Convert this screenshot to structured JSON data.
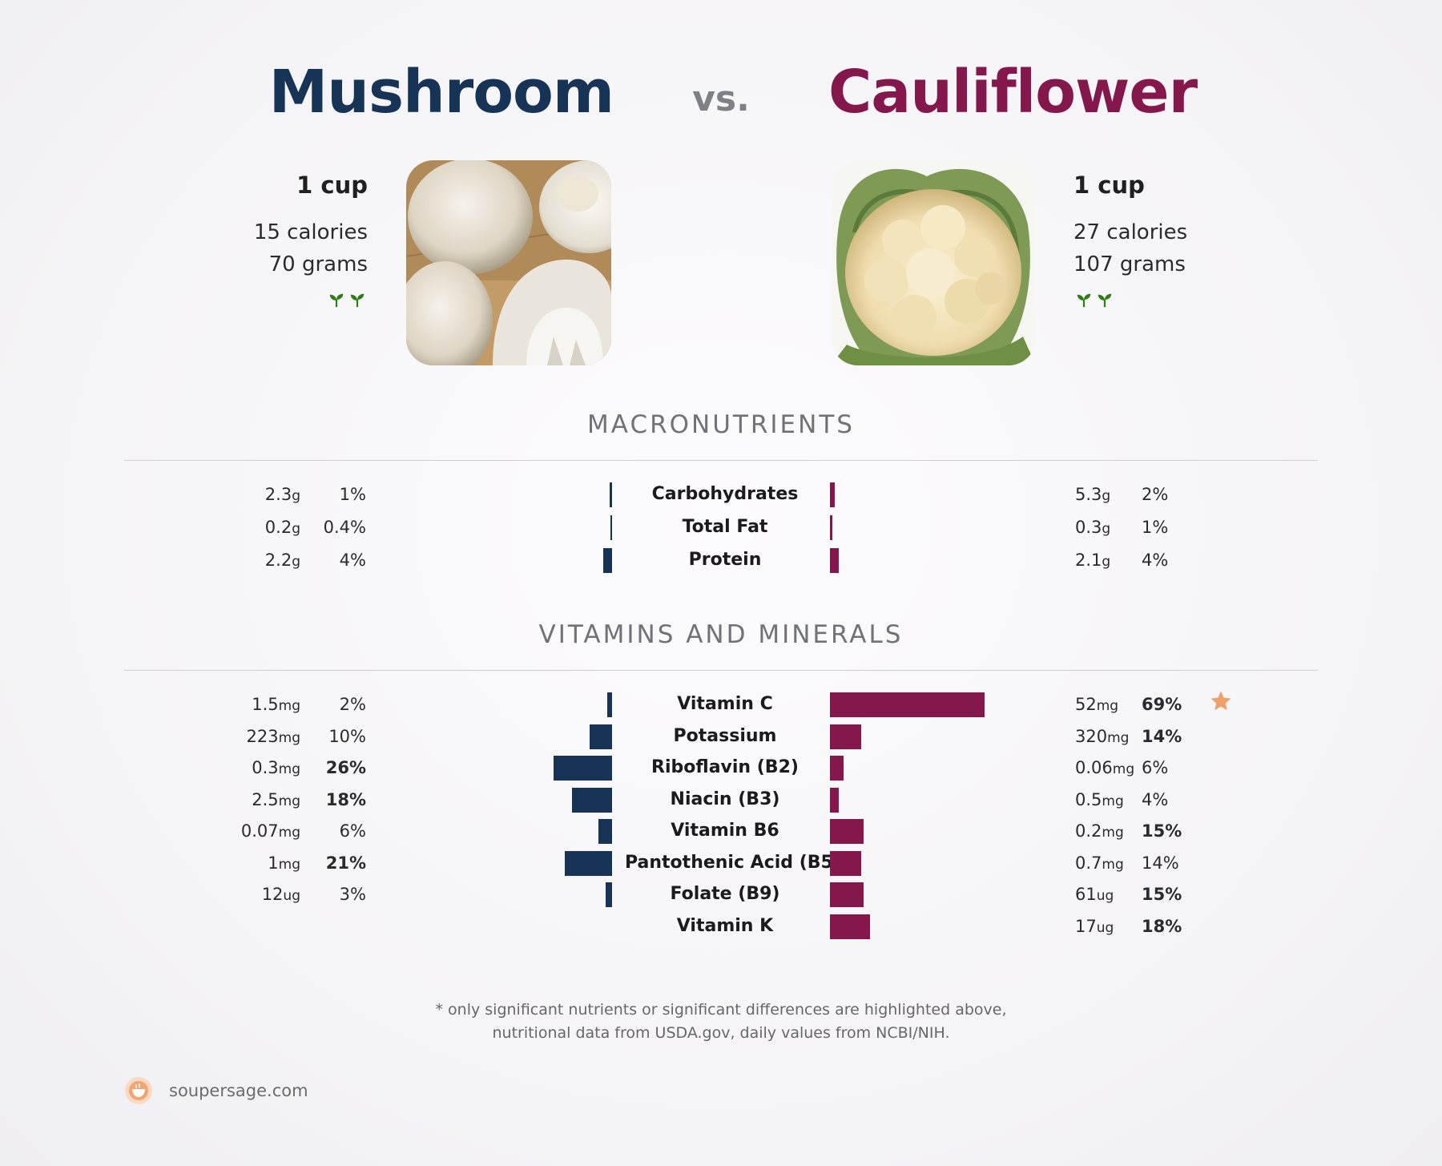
{
  "header": {
    "left_title": "Mushroom",
    "vs": "vs.",
    "right_title": "Cauliflower"
  },
  "foods": {
    "left": {
      "serving": "1 cup",
      "calories": "15 calories",
      "weight": "70 grams",
      "sprout_icons": [
        "sprout-icon",
        "sprout-icon"
      ]
    },
    "right": {
      "serving": "1 cup",
      "calories": "27 calories",
      "weight": "107 grams",
      "sprout_icons": [
        "sprout-icon",
        "sprout-icon"
      ]
    }
  },
  "colors": {
    "left": "#173457",
    "right": "#84174b",
    "star": "#f0a066"
  },
  "sections": {
    "macros": "MACRONUTRIENTS",
    "vitamins": "VITAMINS AND MINERALS"
  },
  "chart_data": [
    {
      "type": "bar",
      "title": "MACRONUTRIENTS",
      "categories": [
        "Carbohydrates",
        "Total Fat",
        "Protein"
      ],
      "series": [
        {
          "name": "Mushroom",
          "amounts": [
            "2.3",
            "0.2",
            "2.2"
          ],
          "units": [
            "g",
            "g",
            "g"
          ],
          "percent_labels": [
            "1%",
            "0.4%",
            "4%"
          ],
          "values": [
            1,
            0.4,
            4
          ],
          "bold": [
            false,
            false,
            false
          ]
        },
        {
          "name": "Cauliflower",
          "amounts": [
            "5.3",
            "0.3",
            "2.1"
          ],
          "units": [
            "g",
            "g",
            "g"
          ],
          "percent_labels": [
            "2%",
            "1%",
            "4%"
          ],
          "values": [
            2,
            1,
            4
          ],
          "bold": [
            false,
            false,
            false
          ]
        }
      ],
      "xlim": [
        0,
        70
      ]
    },
    {
      "type": "bar",
      "title": "VITAMINS AND MINERALS",
      "categories": [
        "Vitamin C",
        "Potassium",
        "Riboflavin (B2)",
        "Niacin (B3)",
        "Vitamin B6",
        "Pantothenic Acid (B5)",
        "Folate (B9)",
        "Vitamin K"
      ],
      "series": [
        {
          "name": "Mushroom",
          "amounts": [
            "1.5",
            "223",
            "0.3",
            "2.5",
            "0.07",
            "1",
            "12",
            ""
          ],
          "units": [
            "mg",
            "mg",
            "mg",
            "mg",
            "mg",
            "mg",
            "ug",
            ""
          ],
          "percent_labels": [
            "2%",
            "10%",
            "26%",
            "18%",
            "6%",
            "21%",
            "3%",
            ""
          ],
          "values": [
            2,
            10,
            26,
            18,
            6,
            21,
            3,
            0
          ],
          "bold": [
            false,
            false,
            true,
            true,
            false,
            true,
            false,
            false
          ]
        },
        {
          "name": "Cauliflower",
          "amounts": [
            "52",
            "320",
            "0.06",
            "0.5",
            "0.2",
            "0.7",
            "61",
            "17"
          ],
          "units": [
            "mg",
            "mg",
            "mg",
            "mg",
            "mg",
            "mg",
            "ug",
            "ug"
          ],
          "percent_labels": [
            "69%",
            "14%",
            "6%",
            "4%",
            "15%",
            "14%",
            "15%",
            "18%"
          ],
          "values": [
            69,
            14,
            6,
            4,
            15,
            14,
            15,
            18
          ],
          "bold": [
            true,
            true,
            false,
            false,
            true,
            false,
            true,
            true
          ]
        }
      ],
      "highlight_star": {
        "category": "Vitamin C",
        "icon": "star-icon"
      },
      "xlim": [
        0,
        70
      ]
    }
  ],
  "footnote": {
    "line1": "* only significant nutrients or significant differences are highlighted above,",
    "line2": "nutritional data from USDA.gov, daily values from NCBI/NIH."
  },
  "brand": {
    "text": "soupersage.com",
    "icon": "soupersage-logo-icon"
  }
}
